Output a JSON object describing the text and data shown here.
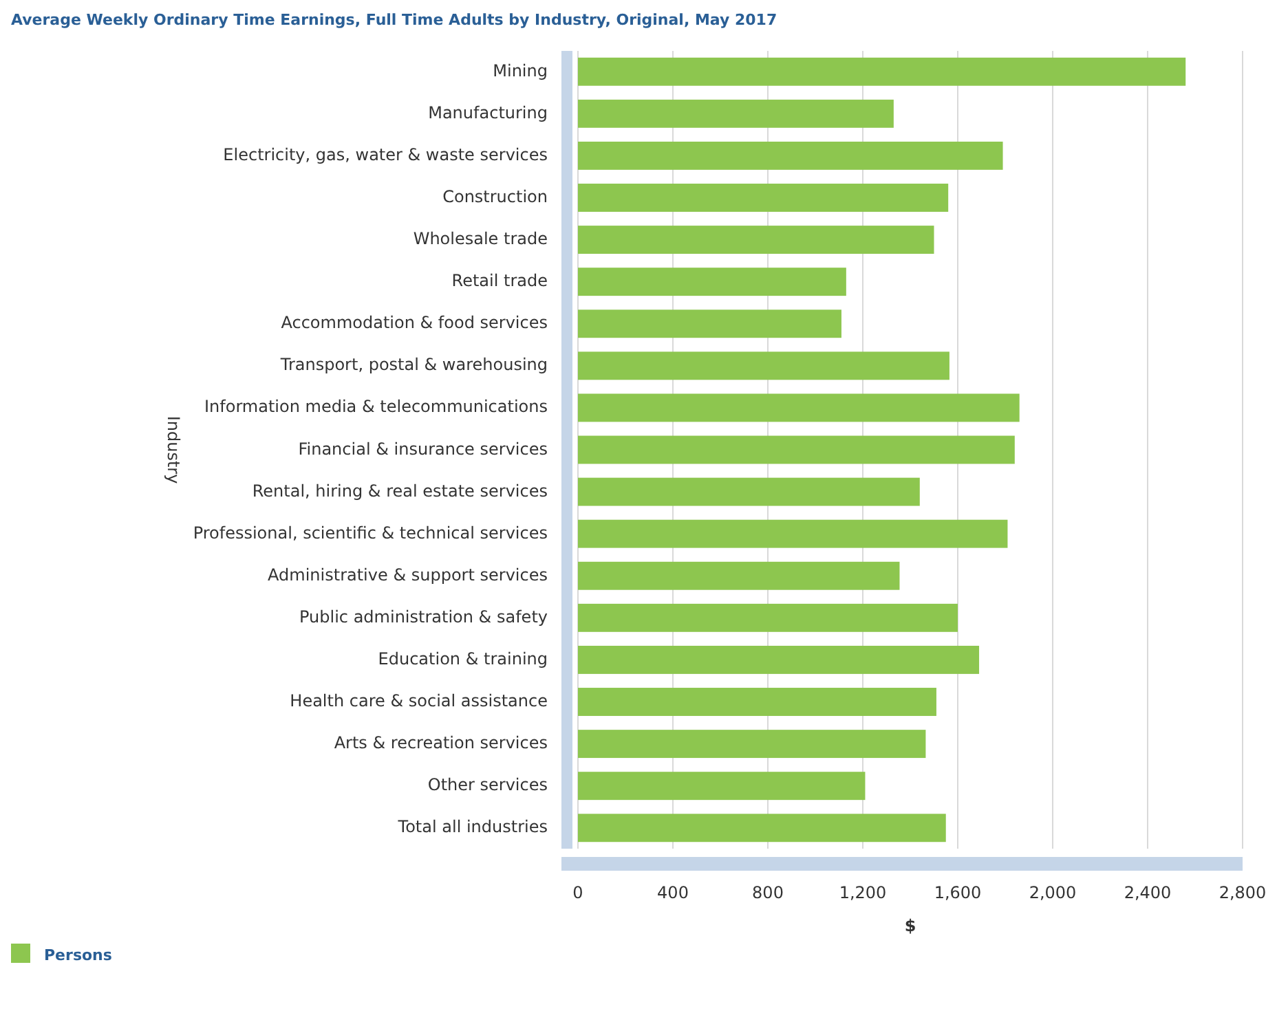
{
  "chart_data": {
    "type": "bar",
    "orientation": "horizontal",
    "title": "Average Weekly Ordinary Time Earnings, Full Time Adults by Industry, Original, May 2017",
    "xlabel": "$",
    "ylabel": "Industry",
    "categories": [
      "Mining",
      "Manufacturing",
      "Electricity, gas, water & waste services",
      "Construction",
      "Wholesale trade",
      "Retail trade",
      "Accommodation & food services",
      "Transport, postal & warehousing",
      "Information media & telecommunications",
      "Financial & insurance services",
      "Rental, hiring & real estate services",
      "Professional, scientific & technical services",
      "Administrative & support services",
      "Public administration & safety",
      "Education & training",
      "Health care & social assistance",
      "Arts & recreation services",
      "Other services",
      "Total all industries"
    ],
    "series": [
      {
        "name": "Persons",
        "color": "#8dc64f",
        "values": [
          2560,
          1330,
          1790,
          1560,
          1500,
          1130,
          1110,
          1565,
          1860,
          1840,
          1440,
          1810,
          1355,
          1600,
          1690,
          1510,
          1465,
          1210,
          1550
        ]
      }
    ],
    "xlim": [
      0,
      2800
    ],
    "xticks": [
      0,
      {
        "value": 400,
        "label": "400"
      },
      {
        "value": 800,
        "label": "800"
      },
      {
        "value": 1200,
        "label": "1,200"
      },
      {
        "value": 1600,
        "label": "1,600"
      },
      {
        "value": 2000,
        "label": "2,000"
      },
      {
        "value": 2400,
        "label": "2,400"
      },
      {
        "value": 2800,
        "label": "2,800"
      }
    ],
    "grid": "x",
    "legend": "bottom"
  }
}
